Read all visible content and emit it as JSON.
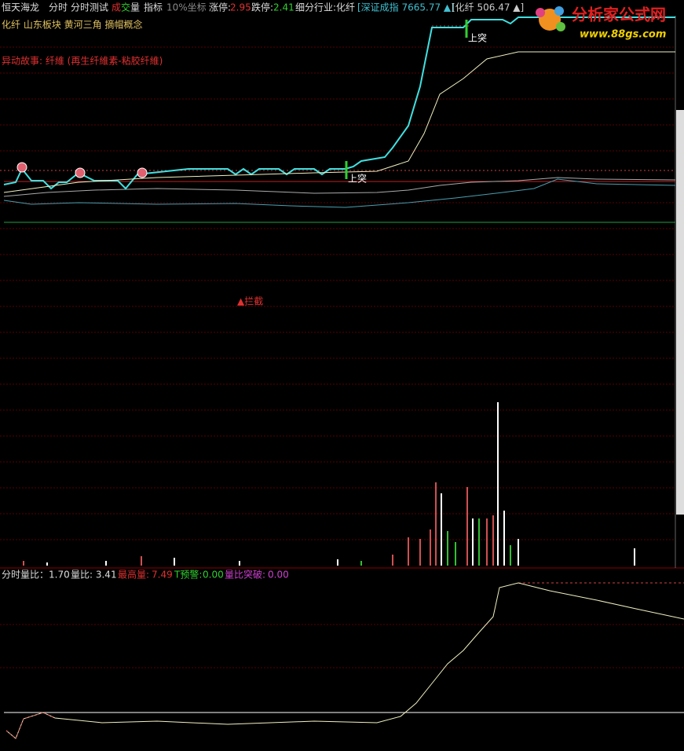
{
  "header": {
    "stock": "恒天海龙",
    "tabs": [
      "分时",
      "分时测试"
    ],
    "volume_tab": [
      "成",
      "交",
      "量"
    ],
    "indicator_tab": "指标",
    "scale": "10%坐标",
    "limit_up_label": "涨停:",
    "limit_up": "2.95",
    "limit_down_label": "跌停:",
    "limit_down": "2.41",
    "industry": "细分行业:化纤",
    "index1": "[深证成指 7665.77 ▲]",
    "index2": "[化纤 506.47 ▲]"
  },
  "concepts": "化纤 山东板块 黄河三角 摘帽概念",
  "story": "异动故事: 纤維 (再生纤維素-粘胶纤維)",
  "annotations": {
    "breakout1": "上突",
    "breakout2": "上突",
    "intercept": "▲拦截"
  },
  "indicator": {
    "ratio": "分时量比：1.70",
    "volume_ratio": "量比: 3.41",
    "max_volume_label": "最高量:",
    "max_volume": "7.49",
    "warning_label": "T预警:",
    "warning": "0.00",
    "breakout_label": "量比突破:",
    "breakout": "0.00"
  },
  "logo": {
    "title": "分析家公式网",
    "url": "www.88gs.com"
  }
}
